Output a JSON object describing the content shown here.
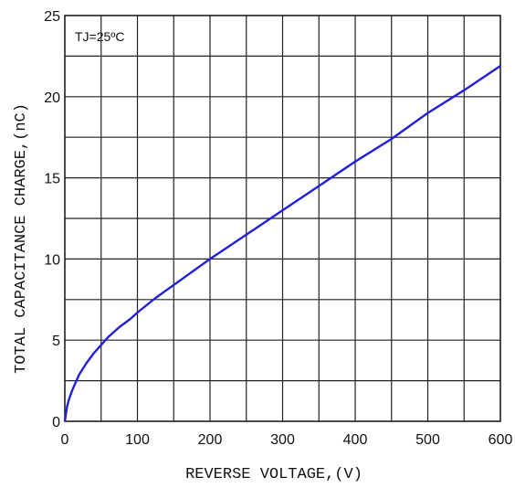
{
  "chart_data": {
    "type": "line",
    "title": "",
    "xlabel": "REVERSE VOLTAGE,(V)",
    "ylabel": "TOTAL CAPACITANCE CHARGE,(nC)",
    "xlim": [
      0,
      600
    ],
    "ylim": [
      0,
      25
    ],
    "x_ticks": [
      0,
      100,
      200,
      300,
      400,
      500,
      600
    ],
    "y_ticks": [
      0,
      5,
      10,
      15,
      20,
      25
    ],
    "x_tick_labels": [
      "0",
      "100",
      "200",
      "300",
      "400",
      "500",
      "600"
    ],
    "y_tick_labels": [
      "0",
      "5",
      "10",
      "15",
      "20",
      "25"
    ],
    "x_grid": [
      50,
      100,
      150,
      200,
      250,
      300,
      350,
      400,
      450,
      500,
      550
    ],
    "y_grid": [
      2.5,
      5,
      7.5,
      10,
      12.5,
      15,
      17.5,
      20,
      22.5
    ],
    "grid": true,
    "annotation": "TJ=25ºC",
    "series": [
      {
        "color": "#1f1fe0",
        "x": [
          0,
          3,
          6,
          10,
          15,
          20,
          30,
          40,
          50,
          60,
          75,
          90,
          100,
          125,
          150,
          200,
          250,
          300,
          350,
          400,
          450,
          500,
          550,
          600
        ],
        "y": [
          0,
          0.9,
          1.4,
          1.9,
          2.4,
          2.9,
          3.6,
          4.2,
          4.7,
          5.2,
          5.8,
          6.3,
          6.7,
          7.6,
          8.4,
          10.0,
          11.5,
          13.0,
          14.5,
          16.0,
          17.4,
          19.0,
          20.4,
          21.9
        ]
      }
    ]
  }
}
